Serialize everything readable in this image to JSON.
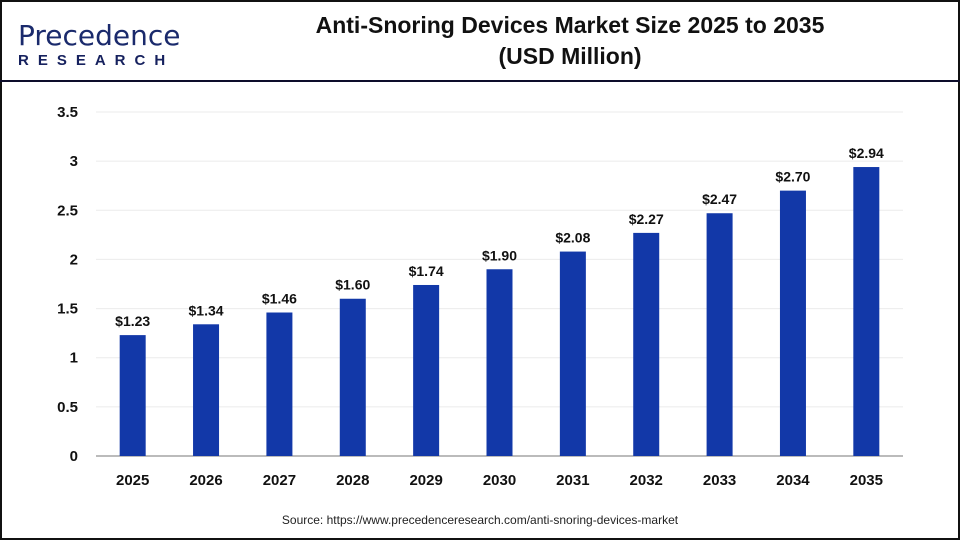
{
  "logo": {
    "main": "Precedence",
    "sub": "RESEARCH"
  },
  "title_line1": "Anti-Snoring Devices Market Size 2025 to 2035",
  "title_line2": "(USD Million)",
  "source": "Source: https://www.precedenceresearch.com/anti-snoring-devices-market",
  "colors": {
    "bar": "#1238a8",
    "grid": "#ebebeb",
    "axis": "#bbbbbb"
  },
  "chart_data": {
    "type": "bar",
    "title": "Anti-Snoring Devices Market Size 2025 to 2035 (USD Million)",
    "categories": [
      "2025",
      "2026",
      "2027",
      "2028",
      "2029",
      "2030",
      "2031",
      "2032",
      "2033",
      "2034",
      "2035"
    ],
    "values": [
      1.23,
      1.34,
      1.46,
      1.6,
      1.74,
      1.9,
      2.08,
      2.27,
      2.47,
      2.7,
      2.94
    ],
    "data_labels": [
      "$1.23",
      "$1.34",
      "$1.46",
      "$1.60",
      "$1.74",
      "$1.90",
      "$2.08",
      "$2.27",
      "$2.47",
      "$2.70",
      "$2.94"
    ],
    "yticks": [
      "0",
      "0.5",
      "1",
      "1.5",
      "2",
      "2.5",
      "3",
      "3.5"
    ],
    "ylim": [
      0,
      3.5
    ],
    "grid": true,
    "xlabel": "",
    "ylabel": ""
  }
}
